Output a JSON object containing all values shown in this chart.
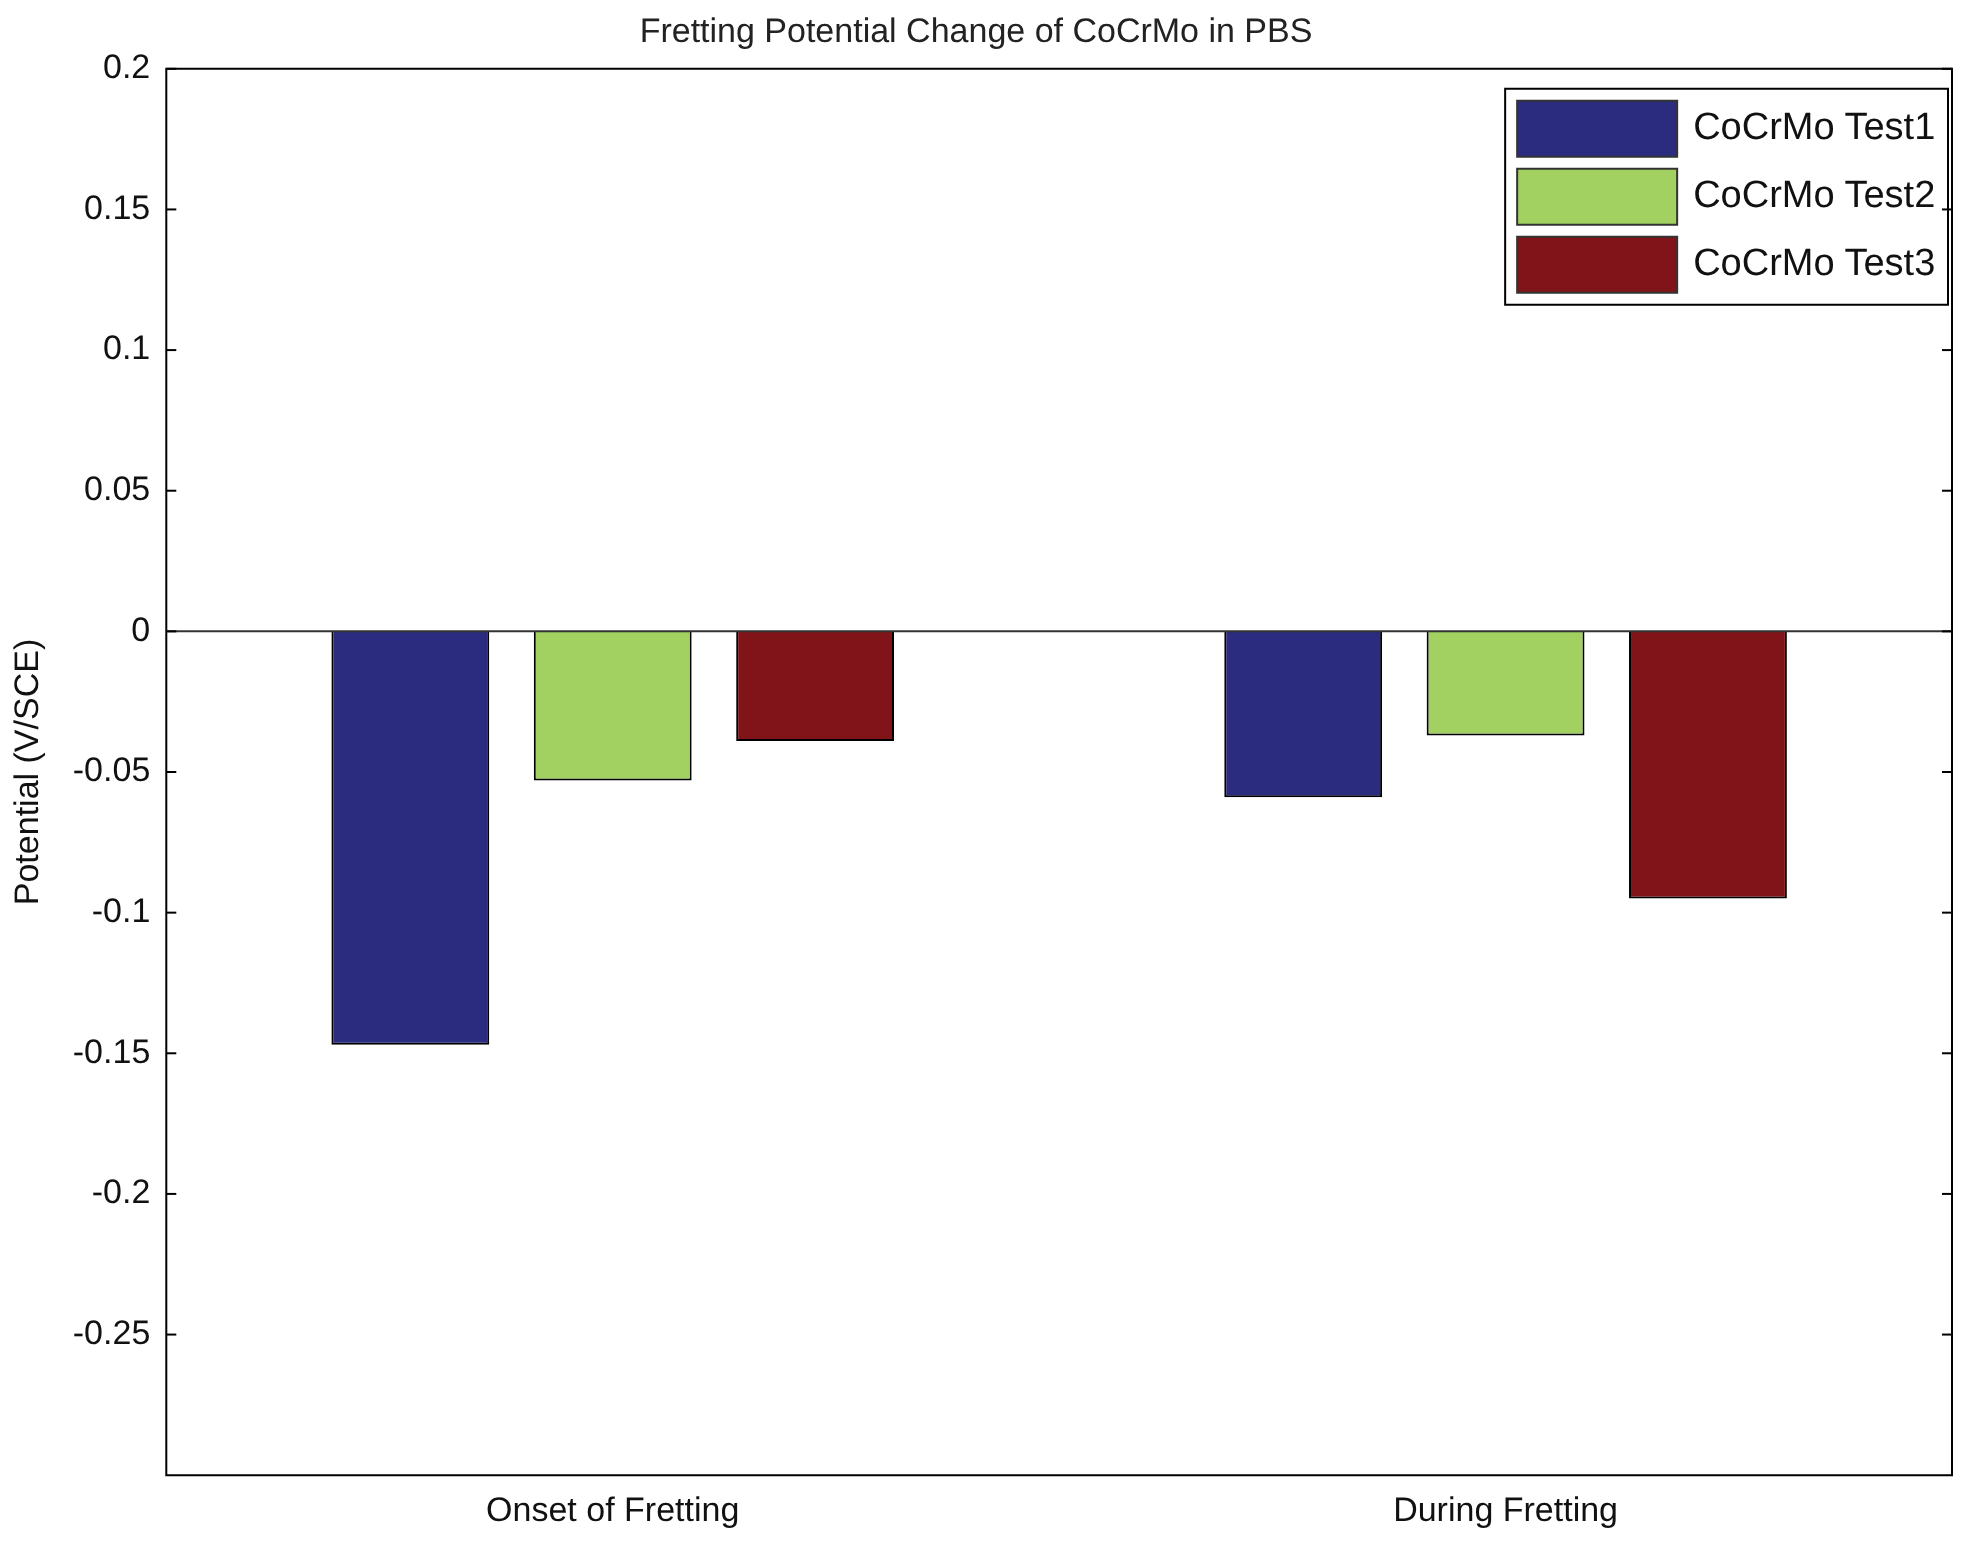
{
  "chart_data": {
    "type": "bar",
    "title": "Fretting Potential Change of CoCrMo in PBS",
    "ylabel": "Potential (V/SCE)",
    "categories": [
      "Onset of Fretting",
      "During Fretting"
    ],
    "series": [
      {
        "name": "CoCrMo Test1",
        "color": "#2b2c7f",
        "values": [
          -0.147,
          -0.059
        ]
      },
      {
        "name": "CoCrMo Test2",
        "color": "#a2d162",
        "values": [
          -0.053,
          -0.037
        ]
      },
      {
        "name": "CoCrMo Test3",
        "color": "#801418",
        "values": [
          -0.039,
          -0.095
        ]
      }
    ],
    "ylim": [
      -0.3,
      0.2
    ],
    "yticks": [
      -0.25,
      -0.2,
      -0.15,
      -0.1,
      -0.05,
      0,
      0.05,
      0.1,
      0.15,
      0.2
    ],
    "ref_lines": [
      {
        "axis": "y",
        "value": 0,
        "color": "#333333"
      }
    ],
    "grid": false,
    "legend": "top right"
  }
}
